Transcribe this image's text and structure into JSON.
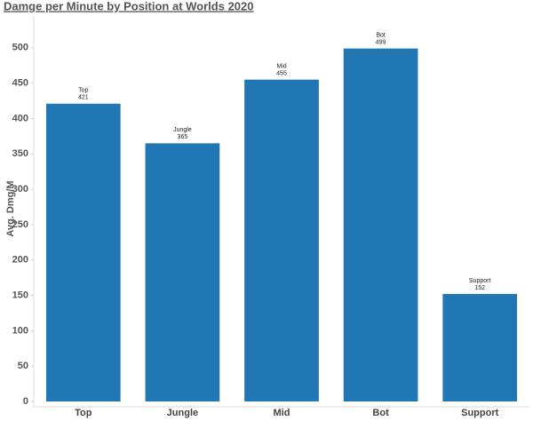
{
  "chart_data": {
    "type": "bar",
    "title": "Damge per Minute by Position at Worlds 2020",
    "y_label": "Avg. Dmg/M",
    "categories": [
      "Top",
      "Jungle",
      "Mid",
      "Bot",
      "Support"
    ],
    "values": [
      421,
      365,
      455,
      499,
      152
    ],
    "color": "#2077b4",
    "ylim": [
      0,
      545
    ],
    "yticks": [
      0,
      50,
      100,
      150,
      200,
      250,
      300,
      350,
      400,
      450,
      500
    ]
  }
}
